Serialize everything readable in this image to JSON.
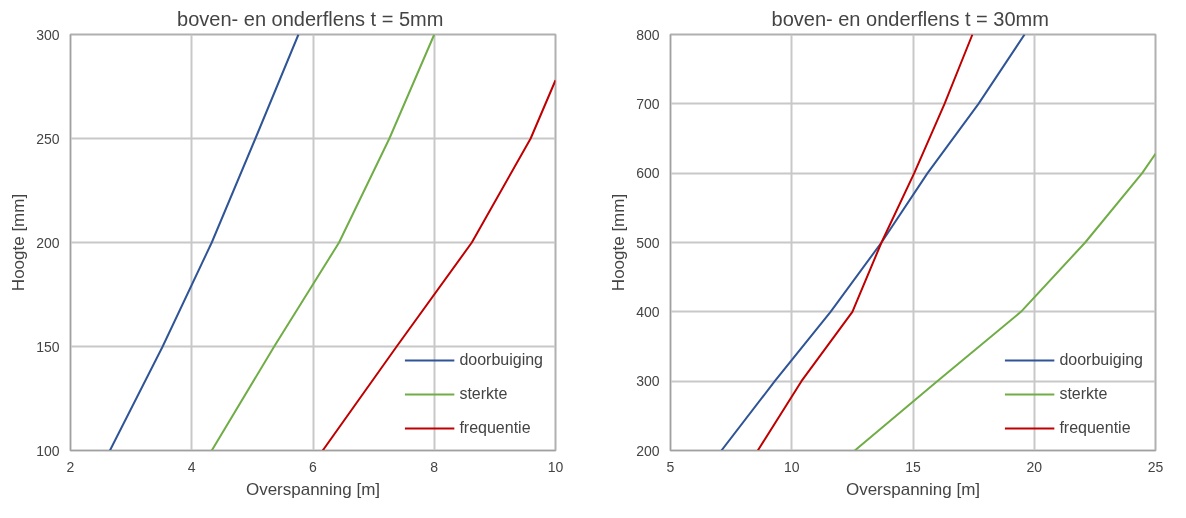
{
  "chart_data": [
    {
      "type": "line",
      "title": "boven- en onderflens  t = 5mm",
      "xlabel": "Overspanning [m]",
      "ylabel": "Hoogte [mm]",
      "xlim": [
        2,
        10
      ],
      "xticks": [
        2,
        4,
        6,
        8,
        10
      ],
      "ylim": [
        100,
        300
      ],
      "yticks": [
        100,
        150,
        200,
        250,
        300
      ],
      "grid": true,
      "legend": "bottom right",
      "line_style": "solid",
      "marker": "none",
      "series": [
        {
          "name": "doorbuiging",
          "color": "#2f5597",
          "x": [
            2.65,
            3.52,
            4.33,
            5.05,
            5.76
          ],
          "values": [
            100,
            150,
            200,
            250,
            300
          ]
        },
        {
          "name": "sterkte",
          "color": "#70ad47",
          "x": [
            4.33,
            5.36,
            6.43,
            7.26,
            8.0
          ],
          "values": [
            100,
            150,
            200,
            250,
            300
          ]
        },
        {
          "name": "frequentie",
          "color": "#c00000",
          "x": [
            6.16,
            7.38,
            8.62,
            9.59,
            10.0
          ],
          "values": [
            100,
            150,
            200,
            250,
            278
          ]
        }
      ]
    },
    {
      "type": "line",
      "title": "boven- en onderflens  t = 30mm",
      "xlabel": "Overspanning [m]",
      "ylabel": "Hoogte [mm]",
      "xlim": [
        5,
        25
      ],
      "xticks": [
        5,
        10,
        15,
        20,
        25
      ],
      "ylim": [
        200,
        800
      ],
      "yticks": [
        200,
        300,
        400,
        500,
        600,
        700,
        800
      ],
      "grid": true,
      "legend": "bottom right",
      "line_style": "solid",
      "marker": "none",
      "series": [
        {
          "name": "doorbuiging",
          "color": "#2f5597",
          "x": [
            7.1,
            9.3,
            11.6,
            13.7,
            15.6,
            17.7,
            19.6
          ],
          "values": [
            200,
            300,
            400,
            500,
            600,
            700,
            800
          ]
        },
        {
          "name": "sterkte",
          "color": "#70ad47",
          "x": [
            12.6,
            16.0,
            19.45,
            22.1,
            24.45,
            25.0
          ],
          "values": [
            200,
            300,
            400,
            500,
            600,
            628
          ]
        },
        {
          "name": "frequentie",
          "color": "#c00000",
          "x": [
            8.6,
            10.4,
            12.5,
            13.7,
            15.05,
            16.3,
            17.45
          ],
          "values": [
            200,
            300,
            400,
            500,
            600,
            700,
            800
          ]
        }
      ]
    }
  ]
}
